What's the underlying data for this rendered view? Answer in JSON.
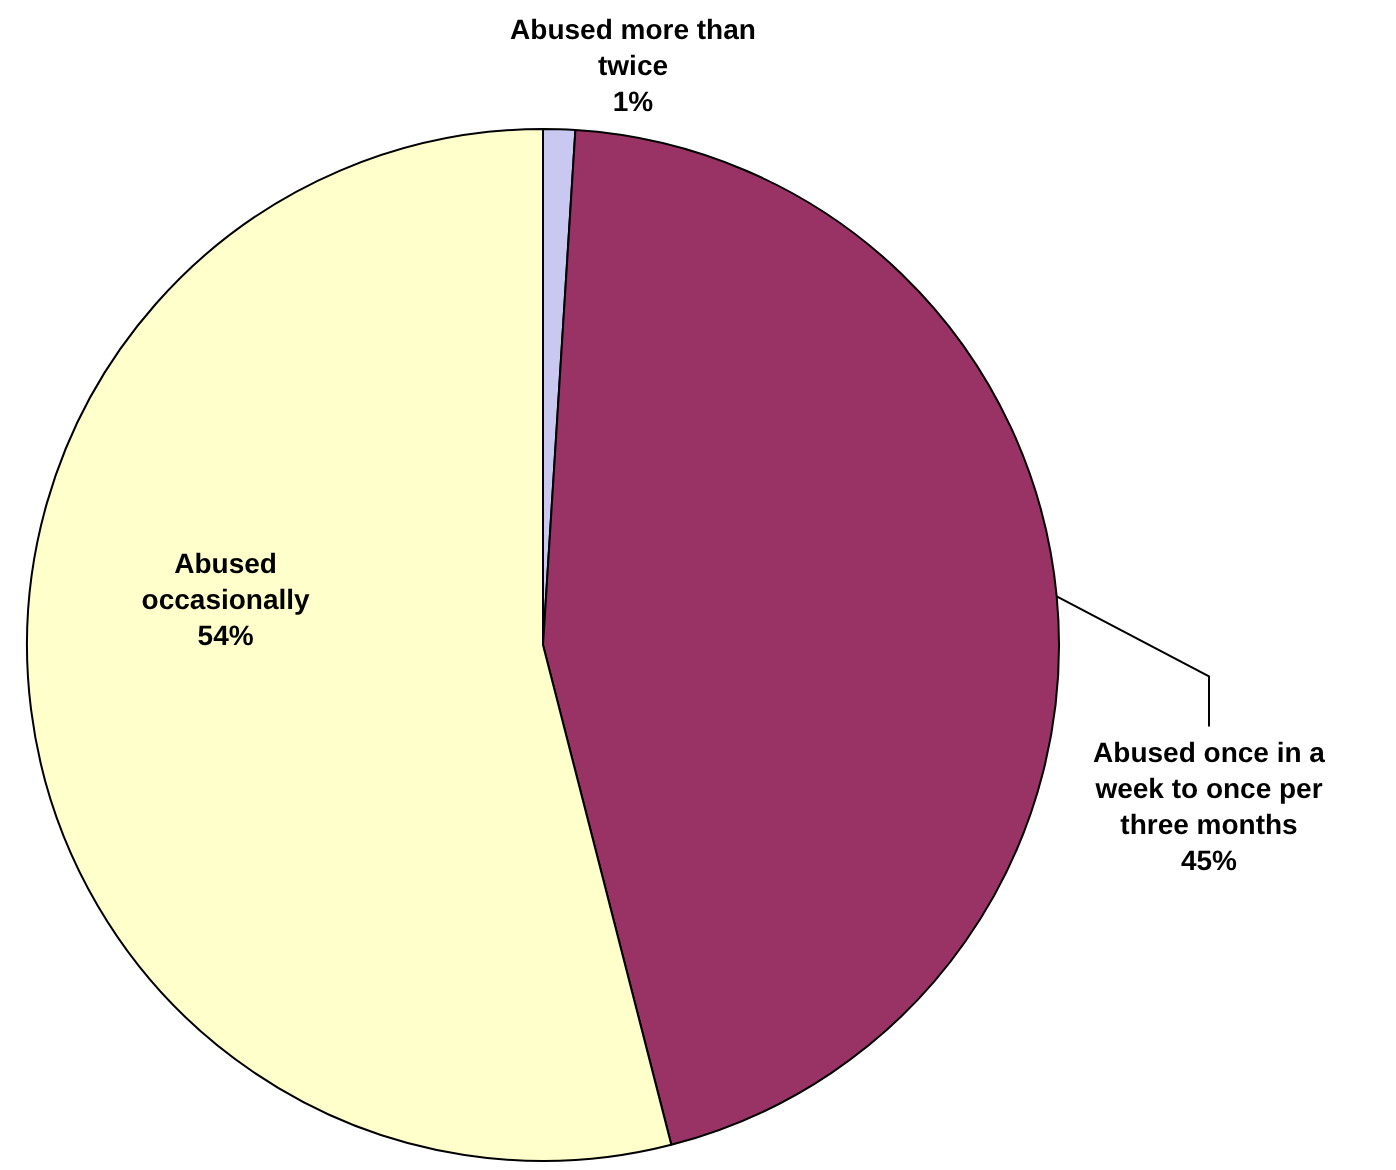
{
  "chart_data": {
    "type": "pie",
    "categories": [
      "Abused more than twice",
      "Abused once in a week to once per three months",
      "Abused occasionally"
    ],
    "values": [
      1,
      45,
      54
    ],
    "colors": [
      "#c8c8f0",
      "#993366",
      "#ffffcc"
    ],
    "value_labels": [
      "1%",
      "45%",
      "54%"
    ],
    "legend": false
  }
}
